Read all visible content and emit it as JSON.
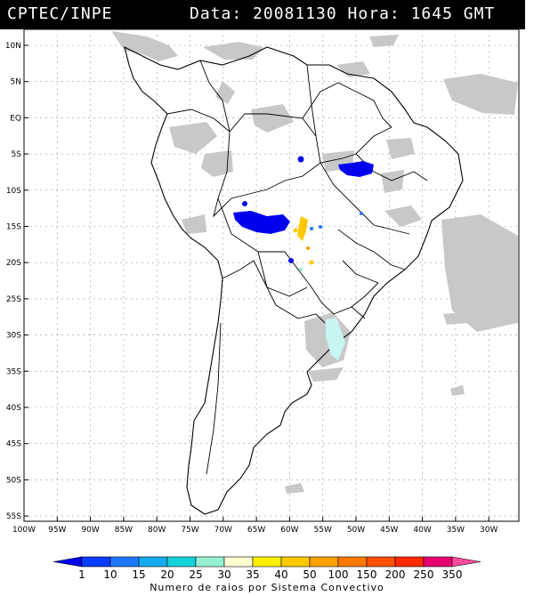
{
  "header": {
    "source": "CPTEC/INPE",
    "datetime": "Data: 20081130 Hora: 1645 GMT"
  },
  "lat_labels": [
    "10N",
    "5N",
    "EQ",
    "5S",
    "10S",
    "15S",
    "20S",
    "25S",
    "30S",
    "35S",
    "40S",
    "45S",
    "50S",
    "55S"
  ],
  "lon_labels": [
    "100W",
    "95W",
    "90W",
    "85W",
    "80W",
    "75W",
    "70W",
    "65W",
    "60W",
    "55W",
    "50W",
    "45W",
    "40W",
    "35W",
    "30W"
  ],
  "legend": {
    "values": [
      "1",
      "10",
      "15",
      "20",
      "25",
      "30",
      "35",
      "40",
      "50",
      "100",
      "150",
      "200",
      "250",
      "350"
    ],
    "colors": [
      "#0000ee",
      "#0a3cff",
      "#1e78ff",
      "#14aaf0",
      "#14d2dc",
      "#96f0d2",
      "#ffffd2",
      "#fff000",
      "#ffc800",
      "#ffa000",
      "#ff7800",
      "#ff5000",
      "#ff2800",
      "#e6006e",
      "#ff4aa0"
    ],
    "caption": "Numero de raios por Sistema Convectivo"
  },
  "colors": {
    "cloud": "#c8c8c8",
    "coast": "#000000",
    "grid": "#9a9a9a"
  }
}
